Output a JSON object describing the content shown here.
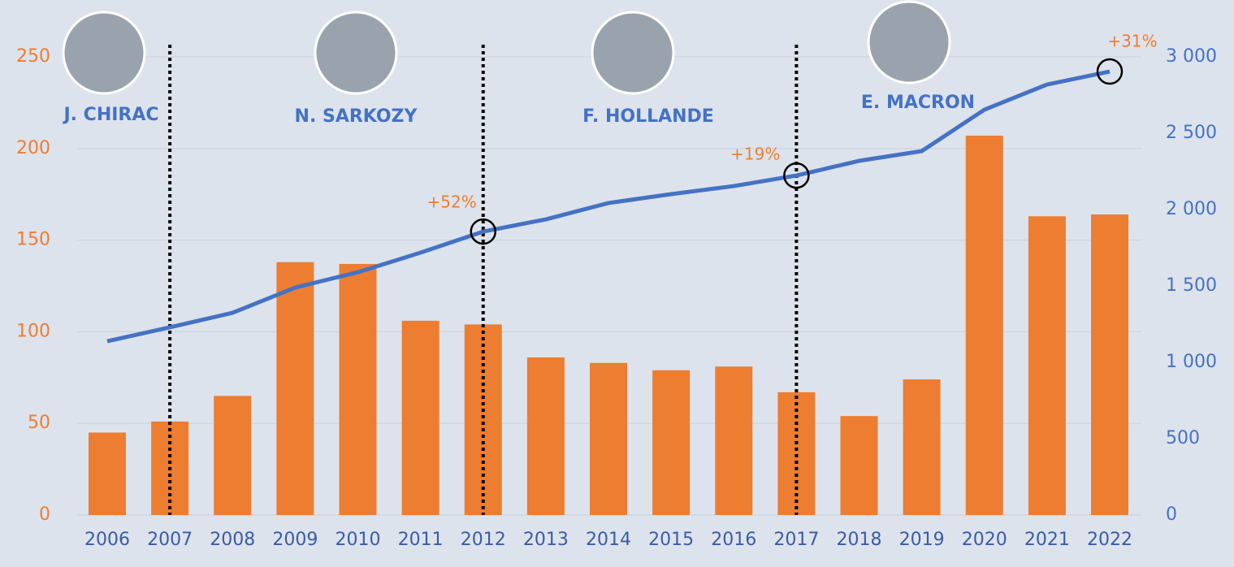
{
  "chart_data": {
    "type": "bar",
    "categories": [
      "2006",
      "2007",
      "2008",
      "2009",
      "2010",
      "2011",
      "2012",
      "2013",
      "2014",
      "2015",
      "2016",
      "2017",
      "2018",
      "2019",
      "2020",
      "2021",
      "2022"
    ],
    "series": [
      {
        "type": "bar",
        "color": "#ed7d31",
        "values": [
          45,
          51,
          65,
          138,
          137,
          106,
          104,
          86,
          83,
          79,
          81,
          67,
          54,
          74,
          207,
          163,
          164
        ]
      },
      {
        "type": "line",
        "axis": "y2",
        "color": "#4472c4",
        "values": [
          1138,
          1229,
          1324,
          1489,
          1590,
          1718,
          1856,
          1936,
          2043,
          2101,
          2154,
          2223,
          2319,
          2383,
          2654,
          2819,
          2904
        ]
      }
    ],
    "ylim": [
      0,
      250
    ],
    "yticks": [
      0,
      50,
      100,
      150,
      200,
      250
    ],
    "y2lim": [
      0,
      3000
    ],
    "y2ticks": [
      0,
      500,
      {
        "value": 1000,
        "label": "1 000"
      },
      {
        "value": 1500,
        "label": "1 500"
      },
      {
        "value": 2000,
        "label": "2 000"
      },
      {
        "value": 2500,
        "label": "2 500"
      },
      {
        "value": 3000,
        "label": "3 000"
      }
    ],
    "grid": true,
    "annotations": [
      {
        "text": "+52%",
        "x": "2012"
      },
      {
        "text": "+19%",
        "x": "2017"
      },
      {
        "text": "+31%",
        "x": "2022"
      }
    ],
    "presidents": [
      "J. CHIRAC",
      "N. SARKOZY",
      "F. HOLLANDE",
      "E. MACRON"
    ]
  }
}
